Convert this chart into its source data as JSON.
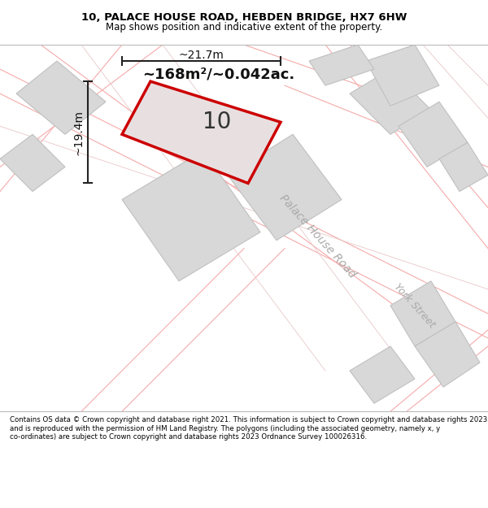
{
  "title_line1": "10, PALACE HOUSE ROAD, HEBDEN BRIDGE, HX7 6HW",
  "title_line2": "Map shows position and indicative extent of the property.",
  "footer_text": "Contains OS data © Crown copyright and database right 2021. This information is subject to Crown copyright and database rights 2023 and is reproduced with the permission of HM Land Registry. The polygons (including the associated geometry, namely x, y co-ordinates) are subject to Crown copyright and database rights 2023 Ordnance Survey 100026316.",
  "area_label": "~168m²/~0.042ac.",
  "width_label": "~21.7m",
  "height_label": "~19.4m",
  "plot_number": "10",
  "bg_color": "#f8f5f5",
  "map_bg": "#ffffff",
  "title_bg": "#ffffff",
  "footer_bg": "#ffffff",
  "road_label1": "Palace House Road",
  "road_label2": "York Street",
  "main_polygon_color": "#cc0000",
  "building_fill": "#d8d8d8",
  "road_line_color": "#f0a0a0",
  "road_line_color2": "#cccccc"
}
